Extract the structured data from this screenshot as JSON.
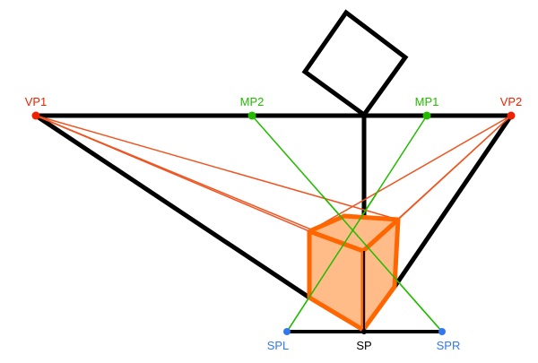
{
  "colors": {
    "black": "#000000",
    "red": "#ee2200",
    "orange_line": "#ee5522",
    "orange_box": "#ff6600",
    "orange_fill": "#ffbb88",
    "green": "#22bb00",
    "blue": "#3377ee"
  },
  "labels": {
    "vp1": "VP1",
    "vp2": "VP2",
    "mp1": "MP1",
    "mp2": "MP2",
    "sp": "SP",
    "spl": "SPL",
    "spr": "SPR"
  }
}
